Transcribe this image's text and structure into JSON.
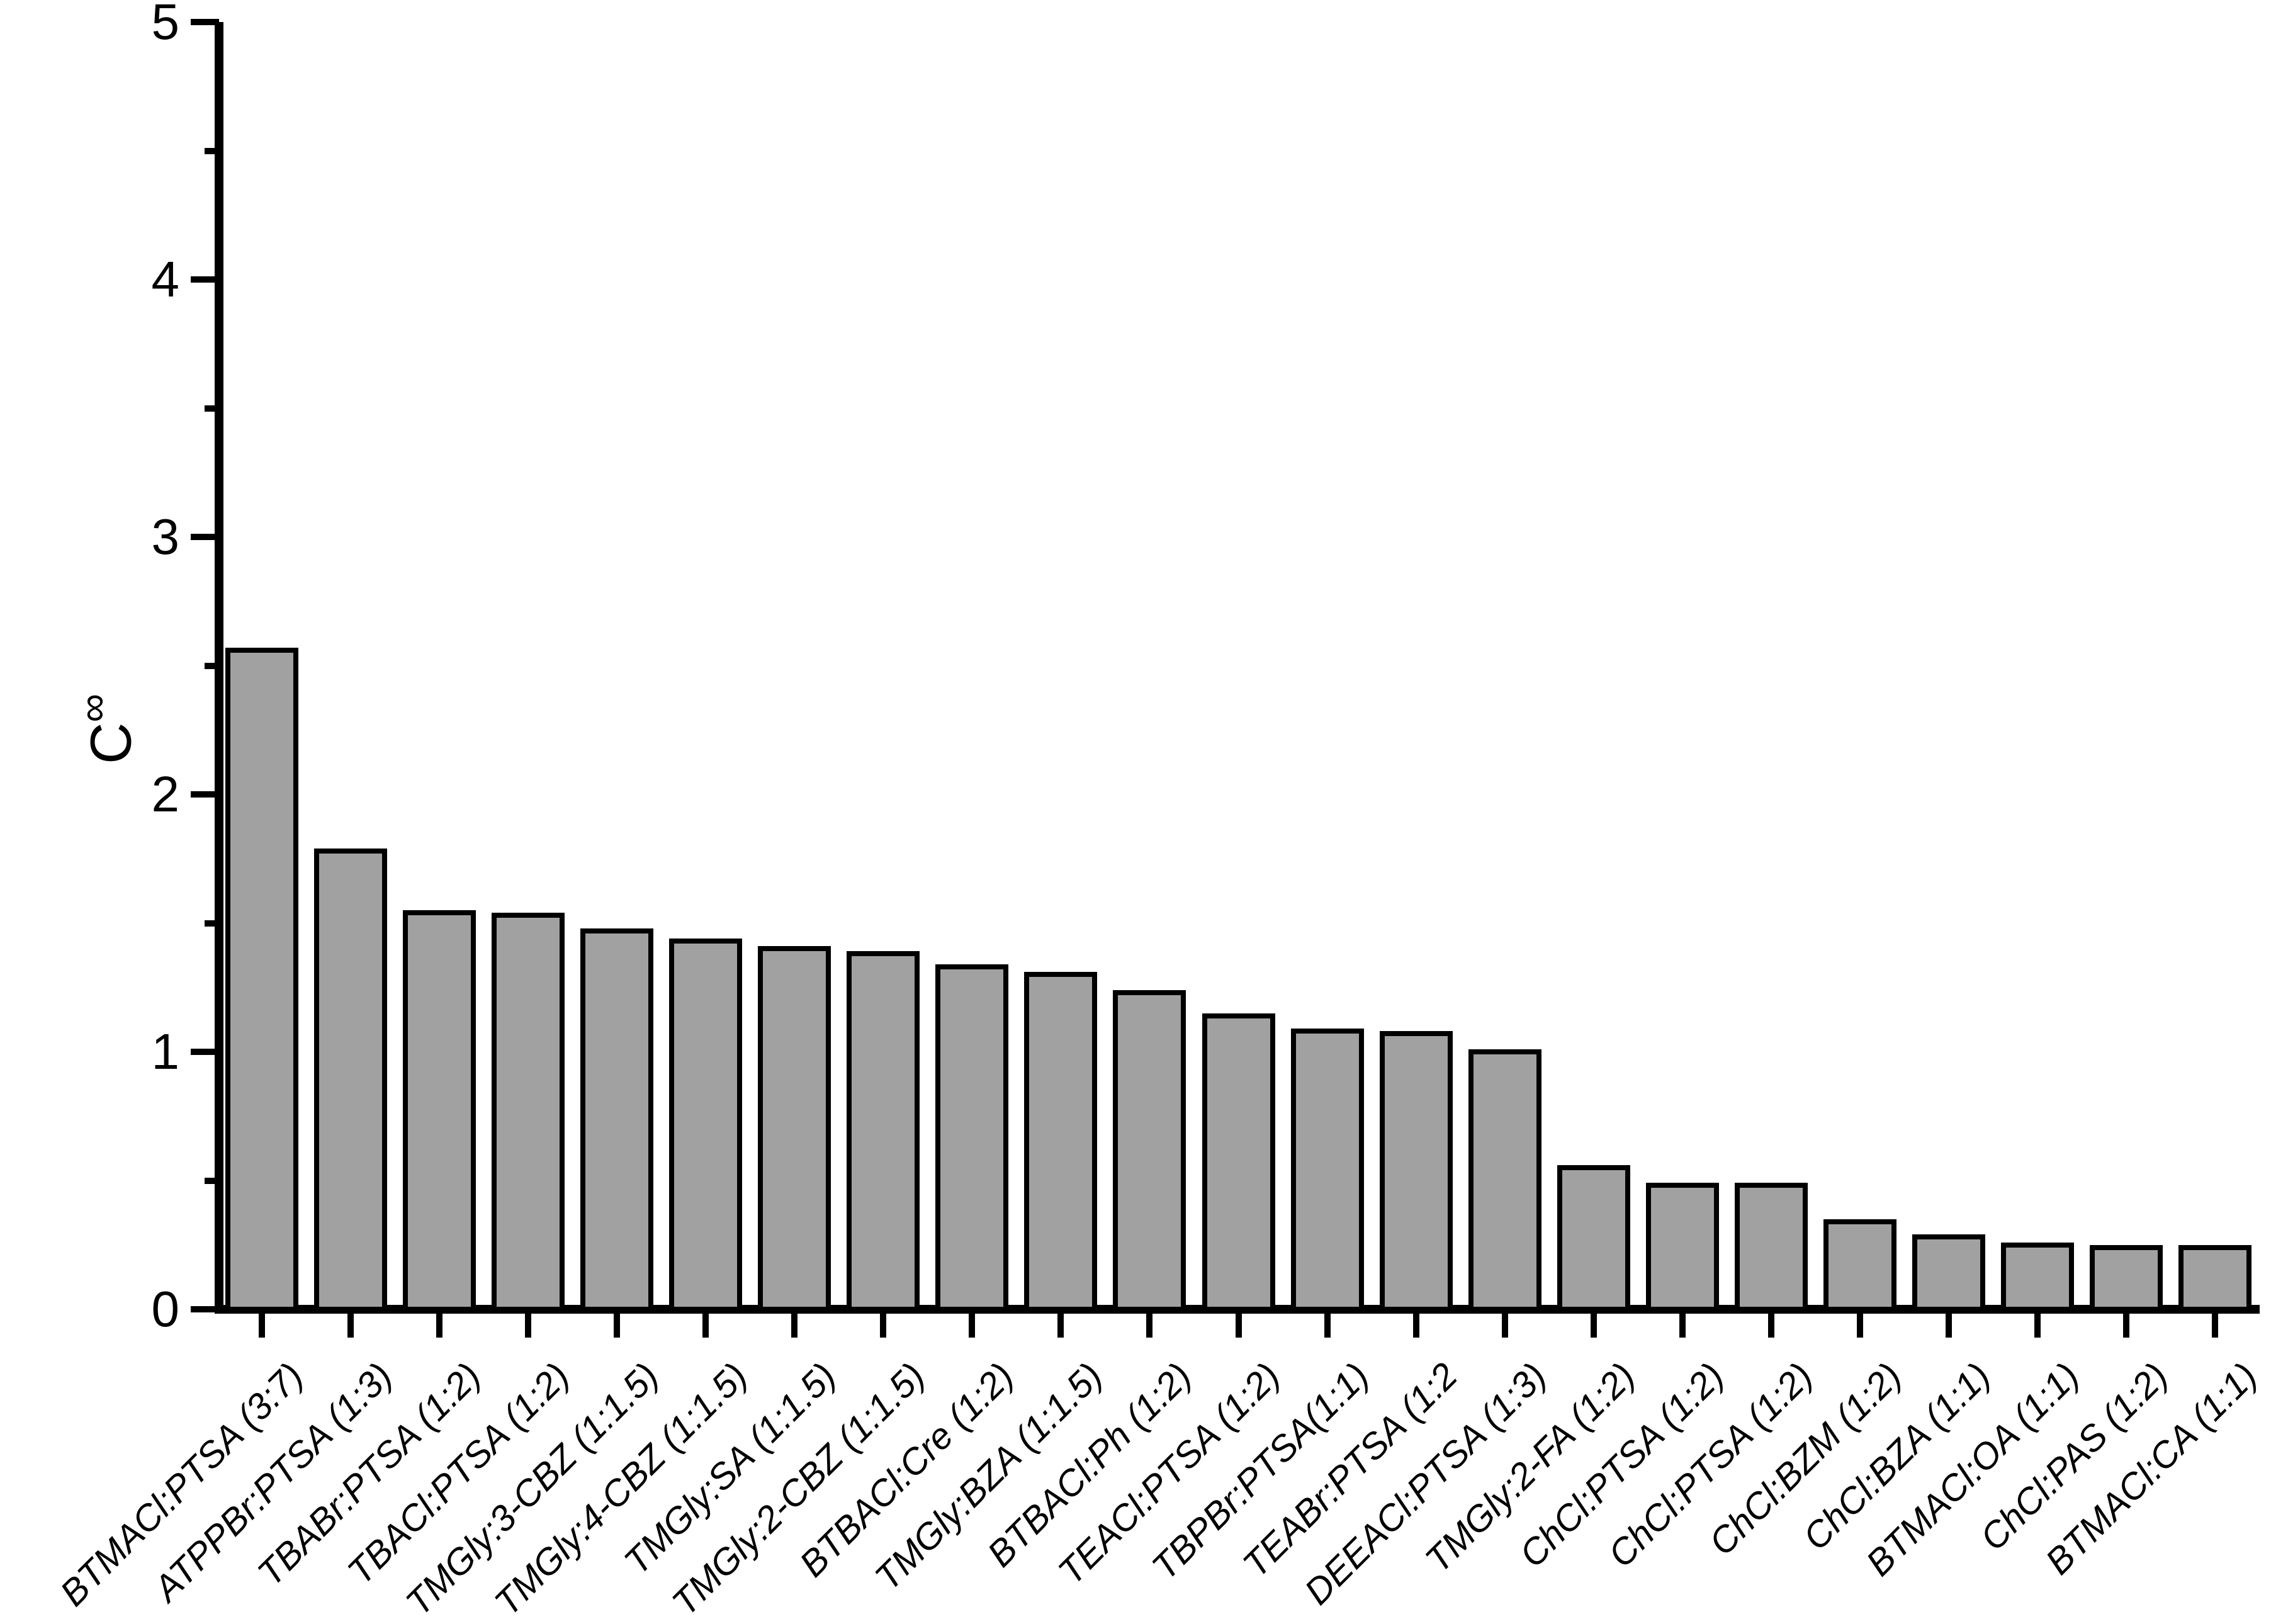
{
  "figure": {
    "background": "#ffffff",
    "axis_color": "#000000"
  },
  "chart_data": {
    "type": "bar",
    "title": "",
    "xlabel": "",
    "ylabel_base": "C",
    "ylabel_sup": "∞",
    "categories": [
      "BTMACl:PTSA (3:7)",
      "ATPPBr:PTSA (1:3)",
      "TBABr:PTSA (1:2)",
      "TBACl:PTSA (1:2)",
      "TMGly:3-CBZ (1:1.5)",
      "TMGly:4-CBZ (1:1.5)",
      "TMGly:SA (1:1.5)",
      "TMGly:2-CBZ (1:1.5)",
      "BTBACl:Cre (1:2)",
      "TMGly:BZA (1:1.5)",
      "BTBACl:Ph (1:2)",
      "TEACl:PTSA (1:2)",
      "TBPBr:PTSA(1:1)",
      "TEABr:PTSA (1:2",
      "DEEACl:PTSA (1:3)",
      "TMGly:2-FA (1:2)",
      "ChCl:PTSA (1:2)",
      "ChCl:PTSA (1:2)",
      "ChCl:BZM (1:2)",
      "ChCl:BZA (1:1)",
      "BTMACl:OA (1:1)",
      "ChCl:PAS (1:2)",
      "BTMACl:CA (1:1)"
    ],
    "values": [
      2.58,
      1.8,
      1.56,
      1.55,
      1.49,
      1.45,
      1.42,
      1.4,
      1.35,
      1.32,
      1.25,
      1.16,
      1.1,
      1.09,
      1.02,
      0.57,
      0.5,
      0.5,
      0.36,
      0.3,
      0.27,
      0.26,
      0.26
    ],
    "ylim": [
      0,
      5
    ],
    "yticks_major": [
      0,
      1,
      2,
      3,
      4,
      5
    ],
    "ytick_labels": [
      "0",
      "1",
      "2",
      "3",
      "4",
      "5"
    ],
    "yticks_minor": [
      0.5,
      1.5,
      2.5,
      3.5,
      4.5
    ],
    "grid": false,
    "legend": null,
    "bar_fill": "#a1a1a1",
    "bar_stroke": "#000000"
  }
}
